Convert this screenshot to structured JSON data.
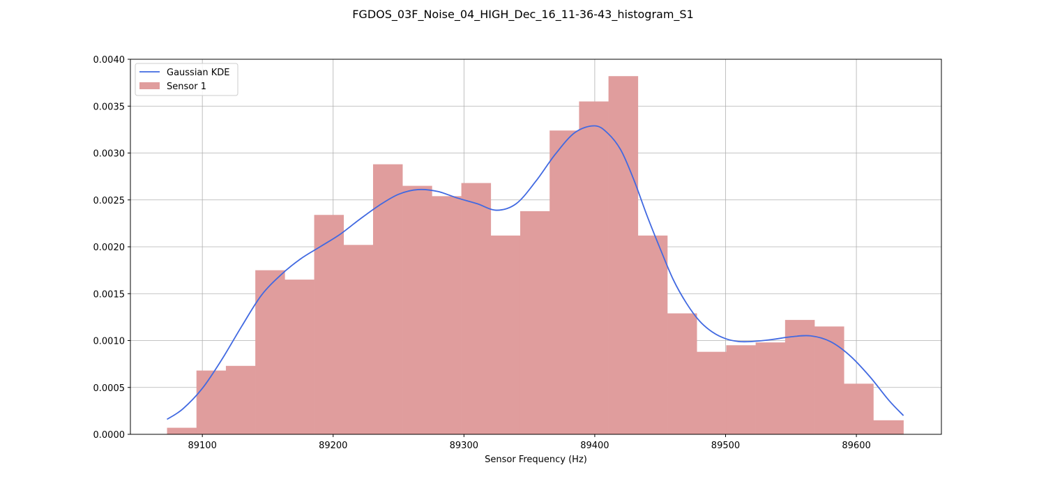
{
  "chart_data": {
    "type": "bar",
    "title": "FGDOS_03F_Noise_04_HIGH_Dec_16_11-36-43_histogram_S1",
    "xlabel": "Sensor Frequency (Hz)",
    "ylabel": "",
    "xlim": [
      89045,
      89665
    ],
    "ylim": [
      0,
      0.004
    ],
    "x_ticks": [
      89100,
      89200,
      89300,
      89400,
      89500,
      89600
    ],
    "x_tick_labels": [
      "89100",
      "89200",
      "89300",
      "89400",
      "89500",
      "89600"
    ],
    "y_ticks": [
      0,
      0.0005,
      0.001,
      0.0015,
      0.002,
      0.0025,
      0.003,
      0.0035,
      0.004
    ],
    "y_tick_labels": [
      "0.0000",
      "0.0005",
      "0.0010",
      "0.0015",
      "0.0020",
      "0.0025",
      "0.0030",
      "0.0035",
      "0.0040"
    ],
    "grid": true,
    "legend_position": "top-left",
    "bin_edges": [
      89073,
      89095.5,
      89118,
      89140.5,
      89163,
      89185.5,
      89208,
      89230.5,
      89253,
      89275.5,
      89298,
      89320.5,
      89343,
      89365.5,
      89388,
      89410.5,
      89433,
      89455.5,
      89478,
      89500.5,
      89523,
      89545.5,
      89568,
      89590.5,
      89613,
      89636
    ],
    "series": [
      {
        "name": "Sensor 1",
        "kind": "histogram",
        "color": "#e09d9d",
        "values": [
          7e-05,
          0.00068,
          0.00073,
          0.00175,
          0.00165,
          0.00234,
          0.00202,
          0.00288,
          0.00265,
          0.00254,
          0.00268,
          0.00212,
          0.00238,
          0.00324,
          0.00355,
          0.00382,
          0.00212,
          0.00129,
          0.00088,
          0.00095,
          0.00098,
          0.00122,
          0.00115,
          0.00054,
          0.00015
        ]
      },
      {
        "name": "Gaussian KDE",
        "kind": "line",
        "color": "#4169e1",
        "x": [
          89073,
          89085,
          89100,
          89115,
          89130,
          89145,
          89160,
          89175,
          89190,
          89205,
          89220,
          89235,
          89250,
          89265,
          89280,
          89295,
          89310,
          89325,
          89340,
          89355,
          89370,
          89385,
          89400,
          89410,
          89420,
          89430,
          89440,
          89450,
          89460,
          89470,
          89480,
          89490,
          89500,
          89510,
          89520,
          89535,
          89550,
          89565,
          89580,
          89595,
          89610,
          89625,
          89636
        ],
        "y": [
          0.00016,
          0.00027,
          0.00049,
          0.0008,
          0.00115,
          0.00148,
          0.0017,
          0.00187,
          0.002,
          0.00213,
          0.00229,
          0.00244,
          0.00256,
          0.00261,
          0.00259,
          0.00252,
          0.00246,
          0.00239,
          0.00246,
          0.0027,
          0.00299,
          0.00322,
          0.00329,
          0.00321,
          0.00303,
          0.00271,
          0.00233,
          0.00198,
          0.00165,
          0.0014,
          0.00121,
          0.00109,
          0.00102,
          0.00099,
          0.00099,
          0.00101,
          0.00104,
          0.00105,
          0.00099,
          0.00084,
          0.00062,
          0.00036,
          0.0002
        ]
      }
    ]
  }
}
